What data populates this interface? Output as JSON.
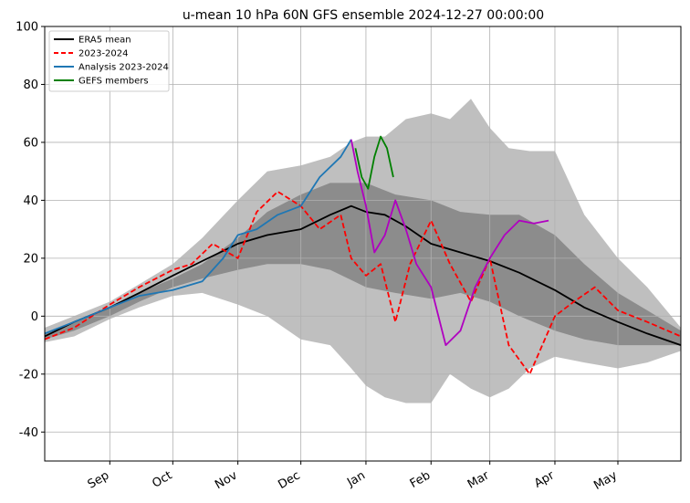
{
  "chart_data": {
    "type": "line",
    "title": "u-mean 10 hPa 60N GFS ensemble 2024-12-27 00:00:00",
    "xlabel": "",
    "ylabel": "",
    "x_start": "2024-08-01",
    "x_end": "2025-05-31",
    "ylim": [
      -50,
      100
    ],
    "yticks": [
      -40,
      -20,
      0,
      20,
      40,
      60,
      80,
      100
    ],
    "xticks": [
      {
        "label": "Sep",
        "date": "2024-09-01"
      },
      {
        "label": "Oct",
        "date": "2024-10-01"
      },
      {
        "label": "Nov",
        "date": "2024-11-01"
      },
      {
        "label": "Dec",
        "date": "2024-12-01"
      },
      {
        "label": "Jan",
        "date": "2025-01-01"
      },
      {
        "label": "Feb",
        "date": "2025-02-01"
      },
      {
        "label": "Mar",
        "date": "2025-03-01"
      },
      {
        "label": "Apr",
        "date": "2025-04-01"
      },
      {
        "label": "May",
        "date": "2025-05-01"
      }
    ],
    "grid": true,
    "legend_position": "top-left",
    "legend": [
      {
        "name": "ERA5 mean",
        "color": "#000000",
        "dash": "solid"
      },
      {
        "name": "2023-2024",
        "color": "#ff0000",
        "dash": "dashed"
      },
      {
        "name": "Analysis 2023-2024",
        "color": "#1f77b4",
        "dash": "solid"
      },
      {
        "name": "GEFS members",
        "color": "#008000",
        "dash": "solid"
      }
    ],
    "bands": [
      {
        "kind": "outer",
        "color": "#bfbfbf",
        "x": [
          "2024-08-01",
          "2024-08-15",
          "2024-09-01",
          "2024-09-15",
          "2024-10-01",
          "2024-10-15",
          "2024-11-01",
          "2024-11-15",
          "2024-12-01",
          "2024-12-15",
          "2024-12-25",
          "2025-01-01",
          "2025-01-10",
          "2025-01-20",
          "2025-02-01",
          "2025-02-10",
          "2025-02-20",
          "2025-03-01",
          "2025-03-10",
          "2025-03-20",
          "2025-04-01",
          "2025-04-15",
          "2025-05-01",
          "2025-05-15",
          "2025-05-31"
        ],
        "upper": [
          -4,
          0,
          5,
          11,
          18,
          27,
          40,
          50,
          52,
          55,
          60,
          62,
          62,
          68,
          70,
          68,
          75,
          65,
          58,
          57,
          57,
          35,
          20,
          10,
          -4
        ],
        "lower": [
          -9,
          -7,
          -1,
          3,
          7,
          8,
          4,
          0,
          -8,
          -10,
          -18,
          -24,
          -28,
          -30,
          -30,
          -20,
          -25,
          -28,
          -25,
          -18,
          -14,
          -16,
          -18,
          -16,
          -12
        ]
      },
      {
        "kind": "inner",
        "color": "#8c8c8c",
        "x": [
          "2024-08-01",
          "2024-08-15",
          "2024-09-01",
          "2024-09-15",
          "2024-10-01",
          "2024-10-15",
          "2024-11-01",
          "2024-11-15",
          "2024-12-01",
          "2024-12-15",
          "2025-01-01",
          "2025-01-15",
          "2025-02-01",
          "2025-02-15",
          "2025-03-01",
          "2025-03-15",
          "2025-04-01",
          "2025-04-15",
          "2025-05-01",
          "2025-05-15",
          "2025-05-31"
        ],
        "upper": [
          -6,
          -2,
          3,
          8,
          13,
          18,
          27,
          36,
          42,
          46,
          46,
          42,
          40,
          36,
          35,
          35,
          28,
          18,
          8,
          2,
          -5
        ],
        "lower": [
          -8,
          -5,
          0,
          5,
          10,
          13,
          16,
          18,
          18,
          16,
          10,
          8,
          6,
          8,
          5,
          0,
          -5,
          -8,
          -10,
          -10,
          -10
        ]
      }
    ],
    "series": [
      {
        "name": "ERA5 mean",
        "color": "#000000",
        "dash": "solid",
        "x": [
          "2024-08-01",
          "2024-08-15",
          "2024-09-01",
          "2024-09-15",
          "2024-10-01",
          "2024-10-15",
          "2024-11-01",
          "2024-11-15",
          "2024-12-01",
          "2024-12-15",
          "2024-12-25",
          "2025-01-01",
          "2025-01-10",
          "2025-01-20",
          "2025-02-01",
          "2025-02-15",
          "2025-03-01",
          "2025-03-15",
          "2025-04-01",
          "2025-04-15",
          "2025-05-01",
          "2025-05-15",
          "2025-05-31"
        ],
        "y": [
          -7,
          -2,
          3,
          8,
          14,
          19,
          25,
          28,
          30,
          35,
          38,
          36,
          35,
          31,
          25,
          22,
          19,
          15,
          9,
          3,
          -2,
          -6,
          -10
        ]
      },
      {
        "name": "2023-2024",
        "color": "#ff0000",
        "dash": "dashed",
        "x": [
          "2024-08-01",
          "2024-08-15",
          "2024-09-01",
          "2024-09-15",
          "2024-10-01",
          "2024-10-10",
          "2024-10-20",
          "2024-11-01",
          "2024-11-10",
          "2024-11-20",
          "2024-12-01",
          "2024-12-10",
          "2024-12-20",
          "2024-12-25",
          "2025-01-01",
          "2025-01-08",
          "2025-01-15",
          "2025-01-22",
          "2025-02-01",
          "2025-02-10",
          "2025-02-20",
          "2025-03-01",
          "2025-03-10",
          "2025-03-20",
          "2025-04-01",
          "2025-04-10",
          "2025-04-20",
          "2025-05-01",
          "2025-05-15",
          "2025-05-31"
        ],
        "y": [
          -8,
          -4,
          4,
          10,
          16,
          18,
          25,
          20,
          36,
          43,
          38,
          30,
          35,
          20,
          14,
          18,
          -2,
          18,
          33,
          18,
          5,
          20,
          -10,
          -20,
          0,
          5,
          10,
          2,
          -2,
          -7
        ]
      },
      {
        "name": "Analysis 2023-2024",
        "color": "#1f77b4",
        "dash": "solid",
        "x": [
          "2024-08-01",
          "2024-08-15",
          "2024-09-01",
          "2024-09-15",
          "2024-10-01",
          "2024-10-15",
          "2024-10-25",
          "2024-11-01",
          "2024-11-10",
          "2024-11-20",
          "2024-12-01",
          "2024-12-10",
          "2024-12-20",
          "2024-12-25"
        ],
        "y": [
          -6,
          -2,
          3,
          7,
          9,
          12,
          20,
          28,
          30,
          35,
          38,
          48,
          55,
          61
        ]
      },
      {
        "name": "",
        "color": "#b000c0",
        "dash": "solid",
        "x": [
          "2024-12-25",
          "2024-12-28",
          "2025-01-01",
          "2025-01-05",
          "2025-01-10",
          "2025-01-15",
          "2025-01-20",
          "2025-01-25",
          "2025-02-01",
          "2025-02-08",
          "2025-02-15",
          "2025-02-22",
          "2025-03-01",
          "2025-03-08",
          "2025-03-15",
          "2025-03-22",
          "2025-03-29"
        ],
        "y": [
          61,
          50,
          38,
          22,
          28,
          40,
          30,
          18,
          10,
          -10,
          -5,
          10,
          20,
          28,
          33,
          32,
          33
        ]
      },
      {
        "name": "GEFS members",
        "color": "#008000",
        "dash": "solid",
        "x": [
          "2024-12-27",
          "2024-12-30",
          "2025-01-02",
          "2025-01-05",
          "2025-01-08",
          "2025-01-11",
          "2025-01-14"
        ],
        "y": [
          58,
          48,
          44,
          55,
          62,
          58,
          48
        ]
      }
    ]
  }
}
